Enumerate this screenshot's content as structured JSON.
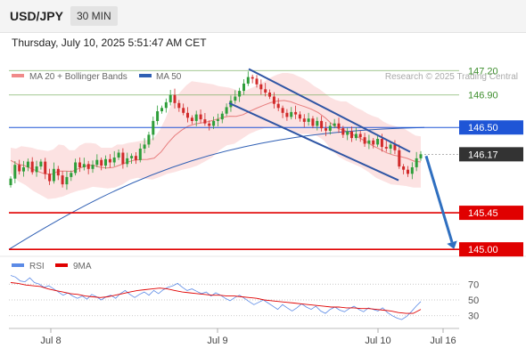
{
  "header": {
    "symbol": "USD/JPY",
    "timeframe": "30 MIN",
    "timestamp": "Thursday, July 10, 2025 5:51:47 AM CET"
  },
  "legend": {
    "ma20_label": "MA 20 + Bollinger Bands",
    "ma50_label": "MA 50",
    "credit": "Research © 2025 Trading Central",
    "rsi_label": "RSI",
    "ma9_label": "9MA"
  },
  "colors": {
    "up": "#2e9e3a",
    "down": "#d12a2a",
    "bollinger_fill": "#fbd8d8",
    "ma20": "#e77e7e",
    "ma50": "#2f5fb4",
    "resistance_green": "#6aa84f",
    "pivot_blue": "#1f55d6",
    "support_red": "#e00000",
    "channel": "#2f55a4",
    "rsi": "#5b8ae6"
  },
  "chart_data": {
    "type": "candlestick",
    "ylim": [
      144.98,
      147.28
    ],
    "x_ticks": [
      "Jul 8",
      "Jul 9",
      "Jul 10",
      "Jul 16"
    ],
    "price_levels": [
      {
        "label": "147.20",
        "value": 147.2,
        "role": "resistance"
      },
      {
        "label": "146.90",
        "value": 146.9,
        "role": "resistance"
      },
      {
        "label": "146.50",
        "value": 146.5,
        "role": "pivot"
      },
      {
        "label": "146.17",
        "value": 146.17,
        "role": "last"
      },
      {
        "label": "145.45",
        "value": 145.45,
        "role": "support"
      },
      {
        "label": "145.00",
        "value": 145.0,
        "role": "support"
      }
    ],
    "closes": [
      145.87,
      146.04,
      145.96,
      146.01,
      146.08,
      145.95,
      146.02,
      146.08,
      145.93,
      145.84,
      145.99,
      145.91,
      145.8,
      145.89,
      145.94,
      146.07,
      146.01,
      146.05,
      145.99,
      146.04,
      146.1,
      146.03,
      146.11,
      146.07,
      146.13,
      146.19,
      146.05,
      146.12,
      146.15,
      146.1,
      146.24,
      146.29,
      146.41,
      146.58,
      146.7,
      146.74,
      146.81,
      146.9,
      146.8,
      146.74,
      146.68,
      146.62,
      146.58,
      146.66,
      146.6,
      146.55,
      146.52,
      146.58,
      146.6,
      146.67,
      146.75,
      146.83,
      146.88,
      146.95,
      147.04,
      147.12,
      147.1,
      147.03,
      146.97,
      146.93,
      146.88,
      146.79,
      146.74,
      146.68,
      146.63,
      146.69,
      146.66,
      146.61,
      146.57,
      146.61,
      146.52,
      146.58,
      146.49,
      146.46,
      146.52,
      146.55,
      146.49,
      146.41,
      146.45,
      146.37,
      146.42,
      146.38,
      146.3,
      146.34,
      146.29,
      146.36,
      146.26,
      146.24,
      146.29,
      146.22,
      146.02,
      145.98,
      145.93,
      146.01,
      146.12,
      146.17
    ],
    "bollinger_upper": [
      146.25,
      146.24,
      146.27,
      146.26,
      146.25,
      146.23,
      146.22,
      146.21,
      146.23,
      146.29,
      146.28,
      146.22,
      146.22,
      146.28,
      146.31,
      146.31,
      146.3,
      146.25,
      146.25,
      146.25,
      146.29,
      146.29,
      146.31,
      146.32,
      146.33,
      146.34,
      146.35,
      146.38,
      146.47,
      146.6,
      146.76,
      146.87,
      146.95,
      147.02,
      147.07,
      147.06,
      147.05,
      147.04,
      147.03,
      147.01,
      147.0,
      146.99,
      146.97,
      146.94,
      146.95,
      146.98,
      147.01,
      147.04,
      147.08,
      147.12,
      147.15,
      147.17,
      147.17,
      147.16,
      147.13,
      147.1,
      147.06,
      147.01,
      146.97,
      146.92,
      146.87,
      146.84,
      146.82,
      146.82,
      146.78,
      146.74,
      146.71,
      146.67,
      146.64,
      146.62,
      146.57,
      146.54,
      146.52,
      146.5,
      146.48,
      146.44,
      146.4,
      146.39
    ],
    "bollinger_lower": [
      145.94,
      145.84,
      145.79,
      145.72,
      145.67,
      145.62,
      145.63,
      145.65,
      145.69,
      145.72,
      145.74,
      145.77,
      145.76,
      145.75,
      145.76,
      145.8,
      145.86,
      145.88,
      145.87,
      145.86,
      145.89,
      145.93,
      145.95,
      145.98,
      146.0,
      146.03,
      146.08,
      146.13,
      146.22,
      146.28,
      146.3,
      146.36,
      146.42,
      146.46,
      146.49,
      146.5,
      146.5,
      146.49,
      146.45,
      146.42,
      146.42,
      146.4,
      146.34,
      146.23,
      146.14,
      146.09,
      146.05,
      146.01,
      145.95,
      145.88,
      145.84,
      145.8,
      145.79,
      145.78,
      145.76,
      145.76
    ],
    "ma50_start": 145.0,
    "ma50_end": 146.5,
    "channel": {
      "upper": [
        147.22,
        146.2
      ],
      "lower": [
        146.8,
        145.85
      ]
    },
    "projection": {
      "from": 146.17,
      "to": 145.0
    },
    "rsi_ticks": [
      70,
      50,
      30
    ],
    "rsi": [
      81,
      79,
      74,
      73,
      78,
      72,
      70,
      66,
      68,
      64,
      60,
      56,
      59,
      55,
      52,
      55,
      51,
      57,
      54,
      50,
      54,
      56,
      52,
      58,
      62,
      57,
      53,
      57,
      60,
      56,
      62,
      58,
      63,
      66,
      68,
      71,
      66,
      62,
      64,
      61,
      58,
      60,
      55,
      59,
      56,
      52,
      49,
      53,
      56,
      52,
      48,
      44,
      47,
      50,
      46,
      42,
      38,
      44,
      40,
      36,
      40,
      45,
      41,
      38,
      42,
      36,
      33,
      38,
      41,
      37,
      35,
      39,
      42,
      38,
      35,
      40,
      38,
      36,
      40,
      34,
      30,
      27,
      25,
      29,
      35,
      42,
      48
    ],
    "rsi_ma9": [
      72,
      71,
      69,
      68,
      67,
      64,
      62,
      60,
      58,
      57,
      55,
      54,
      53,
      54,
      56,
      58,
      60,
      62,
      63,
      64,
      65,
      64,
      62,
      60,
      59,
      58,
      57,
      56,
      56,
      55,
      55,
      54,
      53,
      52,
      50,
      49,
      48,
      47,
      46,
      45,
      44,
      43,
      42,
      41,
      41,
      40,
      40,
      39,
      39,
      38,
      37,
      36,
      34,
      33,
      33,
      38
    ]
  }
}
